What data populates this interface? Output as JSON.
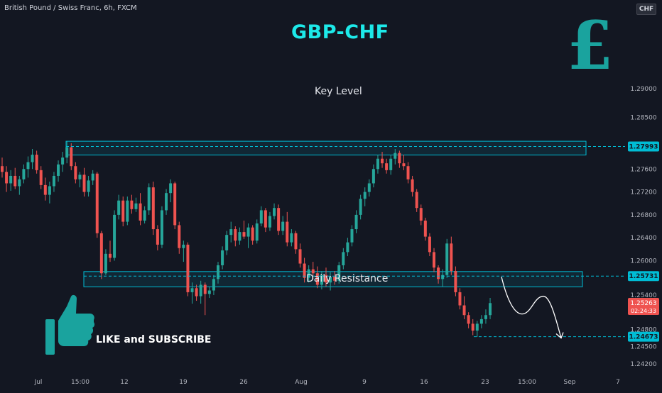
{
  "header": {
    "symbol_info": "British Pound / Swiss Franc, 6h, FXCM",
    "currency": "CHF"
  },
  "overlay": {
    "title": "GBP-CHF",
    "key_level_label": "Key Level",
    "daily_resistance_label": "Daily Resistance",
    "cta_label": "LIKE and SUBSCRIBE",
    "cta_icon": "thumbs-up-icon",
    "currency_icon": "pound-sign-icon"
  },
  "colors": {
    "background": "#131722",
    "bull": "#26a69a",
    "bear": "#ef5350",
    "zone": "#00bcd4",
    "title": "#1de9e9",
    "pound": "#1aa39e"
  },
  "chart_data": {
    "type": "candlestick",
    "instrument": "GBPCHF",
    "timeframe": "6h",
    "ylim": [
      1.2405,
      1.3055
    ],
    "y_ticks": [
      "1.29000",
      "1.28500",
      "1.27600",
      "1.27200",
      "1.26800",
      "1.26400",
      "1.26000",
      "1.25400",
      "1.24800",
      "1.24500",
      "1.24200"
    ],
    "x_ticks": [
      "Jul",
      "15:00",
      "12",
      "19",
      "26",
      "Aug",
      "9",
      "16",
      "23",
      "15:00",
      "Sep",
      "7"
    ],
    "price_labels": [
      {
        "value": 1.27993,
        "text": "1.27993"
      },
      {
        "value": 1.25731,
        "text": "1.25731"
      },
      {
        "value": 1.24673,
        "text": "1.24673"
      }
    ],
    "last_price": {
      "value": 1.25263,
      "text": "1.25263",
      "countdown": "02:24:33"
    },
    "zones": [
      {
        "name": "Key Level",
        "top": 1.28085,
        "bottom": 1.27845,
        "level": 1.27993
      },
      {
        "name": "Daily Resistance",
        "top": 1.2581,
        "bottom": 1.25545,
        "level": 1.25731
      }
    ],
    "support_level": 1.24673,
    "projection": [
      1.2572,
      1.2507,
      1.2538,
      1.2465
    ],
    "candles": [
      [
        1.2765,
        1.278,
        1.2745,
        1.2755
      ],
      [
        1.2755,
        1.2765,
        1.272,
        1.2735
      ],
      [
        1.2735,
        1.2758,
        1.2722,
        1.2748
      ],
      [
        1.2748,
        1.2762,
        1.2725,
        1.273
      ],
      [
        1.273,
        1.2748,
        1.2715,
        1.2742
      ],
      [
        1.2742,
        1.2768,
        1.2735,
        1.276
      ],
      [
        1.276,
        1.2782,
        1.2745,
        1.2772
      ],
      [
        1.2772,
        1.2795,
        1.276,
        1.2785
      ],
      [
        1.2785,
        1.2792,
        1.2752,
        1.2758
      ],
      [
        1.2758,
        1.2765,
        1.2725,
        1.2732
      ],
      [
        1.2732,
        1.2745,
        1.2705,
        1.2715
      ],
      [
        1.2715,
        1.2738,
        1.27,
        1.273
      ],
      [
        1.273,
        1.2755,
        1.272,
        1.2748
      ],
      [
        1.2748,
        1.2775,
        1.2738,
        1.2768
      ],
      [
        1.2768,
        1.279,
        1.2755,
        1.278
      ],
      [
        1.278,
        1.2808,
        1.277,
        1.2798
      ],
      [
        1.2798,
        1.2805,
        1.2758,
        1.2765
      ],
      [
        1.2765,
        1.2772,
        1.2735,
        1.2742
      ],
      [
        1.2742,
        1.2755,
        1.2728,
        1.275
      ],
      [
        1.275,
        1.2762,
        1.2712,
        1.272
      ],
      [
        1.272,
        1.2748,
        1.2712,
        1.274
      ],
      [
        1.274,
        1.2758,
        1.2732,
        1.2752
      ],
      [
        1.2752,
        1.2755,
        1.264,
        1.2648
      ],
      [
        1.2648,
        1.2652,
        1.2568,
        1.2578
      ],
      [
        1.2578,
        1.262,
        1.2575,
        1.2612
      ],
      [
        1.2612,
        1.2635,
        1.2598,
        1.2605
      ],
      [
        1.2605,
        1.2688,
        1.26,
        1.268
      ],
      [
        1.268,
        1.2715,
        1.2672,
        1.2705
      ],
      [
        1.2705,
        1.2712,
        1.266,
        1.2668
      ],
      [
        1.2668,
        1.2712,
        1.2662,
        1.2705
      ],
      [
        1.2705,
        1.2715,
        1.2682,
        1.269
      ],
      [
        1.269,
        1.271,
        1.2685,
        1.27
      ],
      [
        1.27,
        1.2718,
        1.2662,
        1.267
      ],
      [
        1.267,
        1.2695,
        1.2665,
        1.2688
      ],
      [
        1.2688,
        1.2735,
        1.268,
        1.2728
      ],
      [
        1.2728,
        1.2738,
        1.2645,
        1.2655
      ],
      [
        1.2655,
        1.2662,
        1.2618,
        1.2628
      ],
      [
        1.2628,
        1.2695,
        1.2622,
        1.2688
      ],
      [
        1.2688,
        1.2725,
        1.268,
        1.2718
      ],
      [
        1.2718,
        1.2742,
        1.2702,
        1.2735
      ],
      [
        1.2735,
        1.2738,
        1.2655,
        1.2662
      ],
      [
        1.2662,
        1.2668,
        1.2612,
        1.2622
      ],
      [
        1.2622,
        1.2635,
        1.2598,
        1.2628
      ],
      [
        1.2628,
        1.2632,
        1.2538,
        1.2545
      ],
      [
        1.2545,
        1.2562,
        1.2525,
        1.2552
      ],
      [
        1.2552,
        1.2558,
        1.253,
        1.2538
      ],
      [
        1.2538,
        1.2565,
        1.2525,
        1.2558
      ],
      [
        1.2558,
        1.2562,
        1.2505,
        1.2542
      ],
      [
        1.2542,
        1.2555,
        1.2535,
        1.2548
      ],
      [
        1.2548,
        1.2575,
        1.254,
        1.2568
      ],
      [
        1.2568,
        1.2598,
        1.256,
        1.2592
      ],
      [
        1.2592,
        1.2625,
        1.2585,
        1.2618
      ],
      [
        1.2618,
        1.2652,
        1.261,
        1.2645
      ],
      [
        1.2645,
        1.2668,
        1.2632,
        1.2655
      ],
      [
        1.2655,
        1.266,
        1.2625,
        1.2635
      ],
      [
        1.2635,
        1.2658,
        1.2628,
        1.265
      ],
      [
        1.265,
        1.267,
        1.2638,
        1.2642
      ],
      [
        1.2642,
        1.2665,
        1.2622,
        1.2658
      ],
      [
        1.2658,
        1.2662,
        1.2628,
        1.2635
      ],
      [
        1.2635,
        1.2672,
        1.263,
        1.2665
      ],
      [
        1.2665,
        1.2695,
        1.266,
        1.2688
      ],
      [
        1.2688,
        1.2692,
        1.265,
        1.2658
      ],
      [
        1.2658,
        1.2685,
        1.2652,
        1.2678
      ],
      [
        1.2678,
        1.27,
        1.2672,
        1.2692
      ],
      [
        1.2692,
        1.2698,
        1.2645,
        1.2652
      ],
      [
        1.2652,
        1.2678,
        1.2645,
        1.2668
      ],
      [
        1.2668,
        1.2685,
        1.2625,
        1.2632
      ],
      [
        1.2632,
        1.2655,
        1.2625,
        1.2648
      ],
      [
        1.2648,
        1.2652,
        1.2612,
        1.262
      ],
      [
        1.262,
        1.263,
        1.2588,
        1.2595
      ],
      [
        1.2595,
        1.2605,
        1.2562,
        1.257
      ],
      [
        1.257,
        1.2592,
        1.2562,
        1.2585
      ],
      [
        1.2585,
        1.2598,
        1.2568,
        1.2578
      ],
      [
        1.2578,
        1.259,
        1.2552,
        1.2558
      ],
      [
        1.2558,
        1.2582,
        1.255,
        1.2575
      ],
      [
        1.2575,
        1.2588,
        1.2555,
        1.2562
      ],
      [
        1.2562,
        1.258,
        1.2548,
        1.2572
      ],
      [
        1.2572,
        1.2582,
        1.2558,
        1.2565
      ],
      [
        1.2565,
        1.2598,
        1.256,
        1.2592
      ],
      [
        1.2592,
        1.2622,
        1.2585,
        1.2615
      ],
      [
        1.2615,
        1.264,
        1.2608,
        1.2632
      ],
      [
        1.2632,
        1.2662,
        1.2625,
        1.2655
      ],
      [
        1.2655,
        1.2688,
        1.2648,
        1.268
      ],
      [
        1.268,
        1.2715,
        1.2672,
        1.2708
      ],
      [
        1.2708,
        1.2728,
        1.2695,
        1.272
      ],
      [
        1.272,
        1.2742,
        1.2712,
        1.2735
      ],
      [
        1.2735,
        1.2768,
        1.2728,
        1.276
      ],
      [
        1.276,
        1.2785,
        1.2752,
        1.2778
      ],
      [
        1.2778,
        1.279,
        1.2762,
        1.277
      ],
      [
        1.277,
        1.2778,
        1.2752,
        1.2758
      ],
      [
        1.2758,
        1.2785,
        1.275,
        1.2778
      ],
      [
        1.2778,
        1.2795,
        1.2768,
        1.2788
      ],
      [
        1.2788,
        1.2792,
        1.2762,
        1.277
      ],
      [
        1.277,
        1.2785,
        1.2758,
        1.2765
      ],
      [
        1.2765,
        1.2772,
        1.2735,
        1.2742
      ],
      [
        1.2742,
        1.2748,
        1.2712,
        1.272
      ],
      [
        1.272,
        1.2725,
        1.2685,
        1.2692
      ],
      [
        1.2692,
        1.2698,
        1.2662,
        1.267
      ],
      [
        1.267,
        1.2675,
        1.2635,
        1.2642
      ],
      [
        1.2642,
        1.2648,
        1.2608,
        1.2615
      ],
      [
        1.2615,
        1.2622,
        1.258,
        1.2588
      ],
      [
        1.2588,
        1.2592,
        1.256,
        1.2568
      ],
      [
        1.2568,
        1.2585,
        1.2555,
        1.2575
      ],
      [
        1.2575,
        1.2638,
        1.257,
        1.263
      ],
      [
        1.263,
        1.2642,
        1.2575,
        1.2582
      ],
      [
        1.2582,
        1.259,
        1.2538,
        1.2545
      ],
      [
        1.2545,
        1.2552,
        1.2515,
        1.2522
      ],
      [
        1.2522,
        1.2538,
        1.2498,
        1.2505
      ],
      [
        1.2505,
        1.251,
        1.2482,
        1.249
      ],
      [
        1.249,
        1.2498,
        1.247,
        1.2478
      ],
      [
        1.2478,
        1.2495,
        1.2467,
        1.249
      ],
      [
        1.249,
        1.2505,
        1.2482,
        1.2498
      ],
      [
        1.2498,
        1.2515,
        1.249,
        1.2505
      ],
      [
        1.2505,
        1.2535,
        1.2498,
        1.2526
      ]
    ]
  }
}
